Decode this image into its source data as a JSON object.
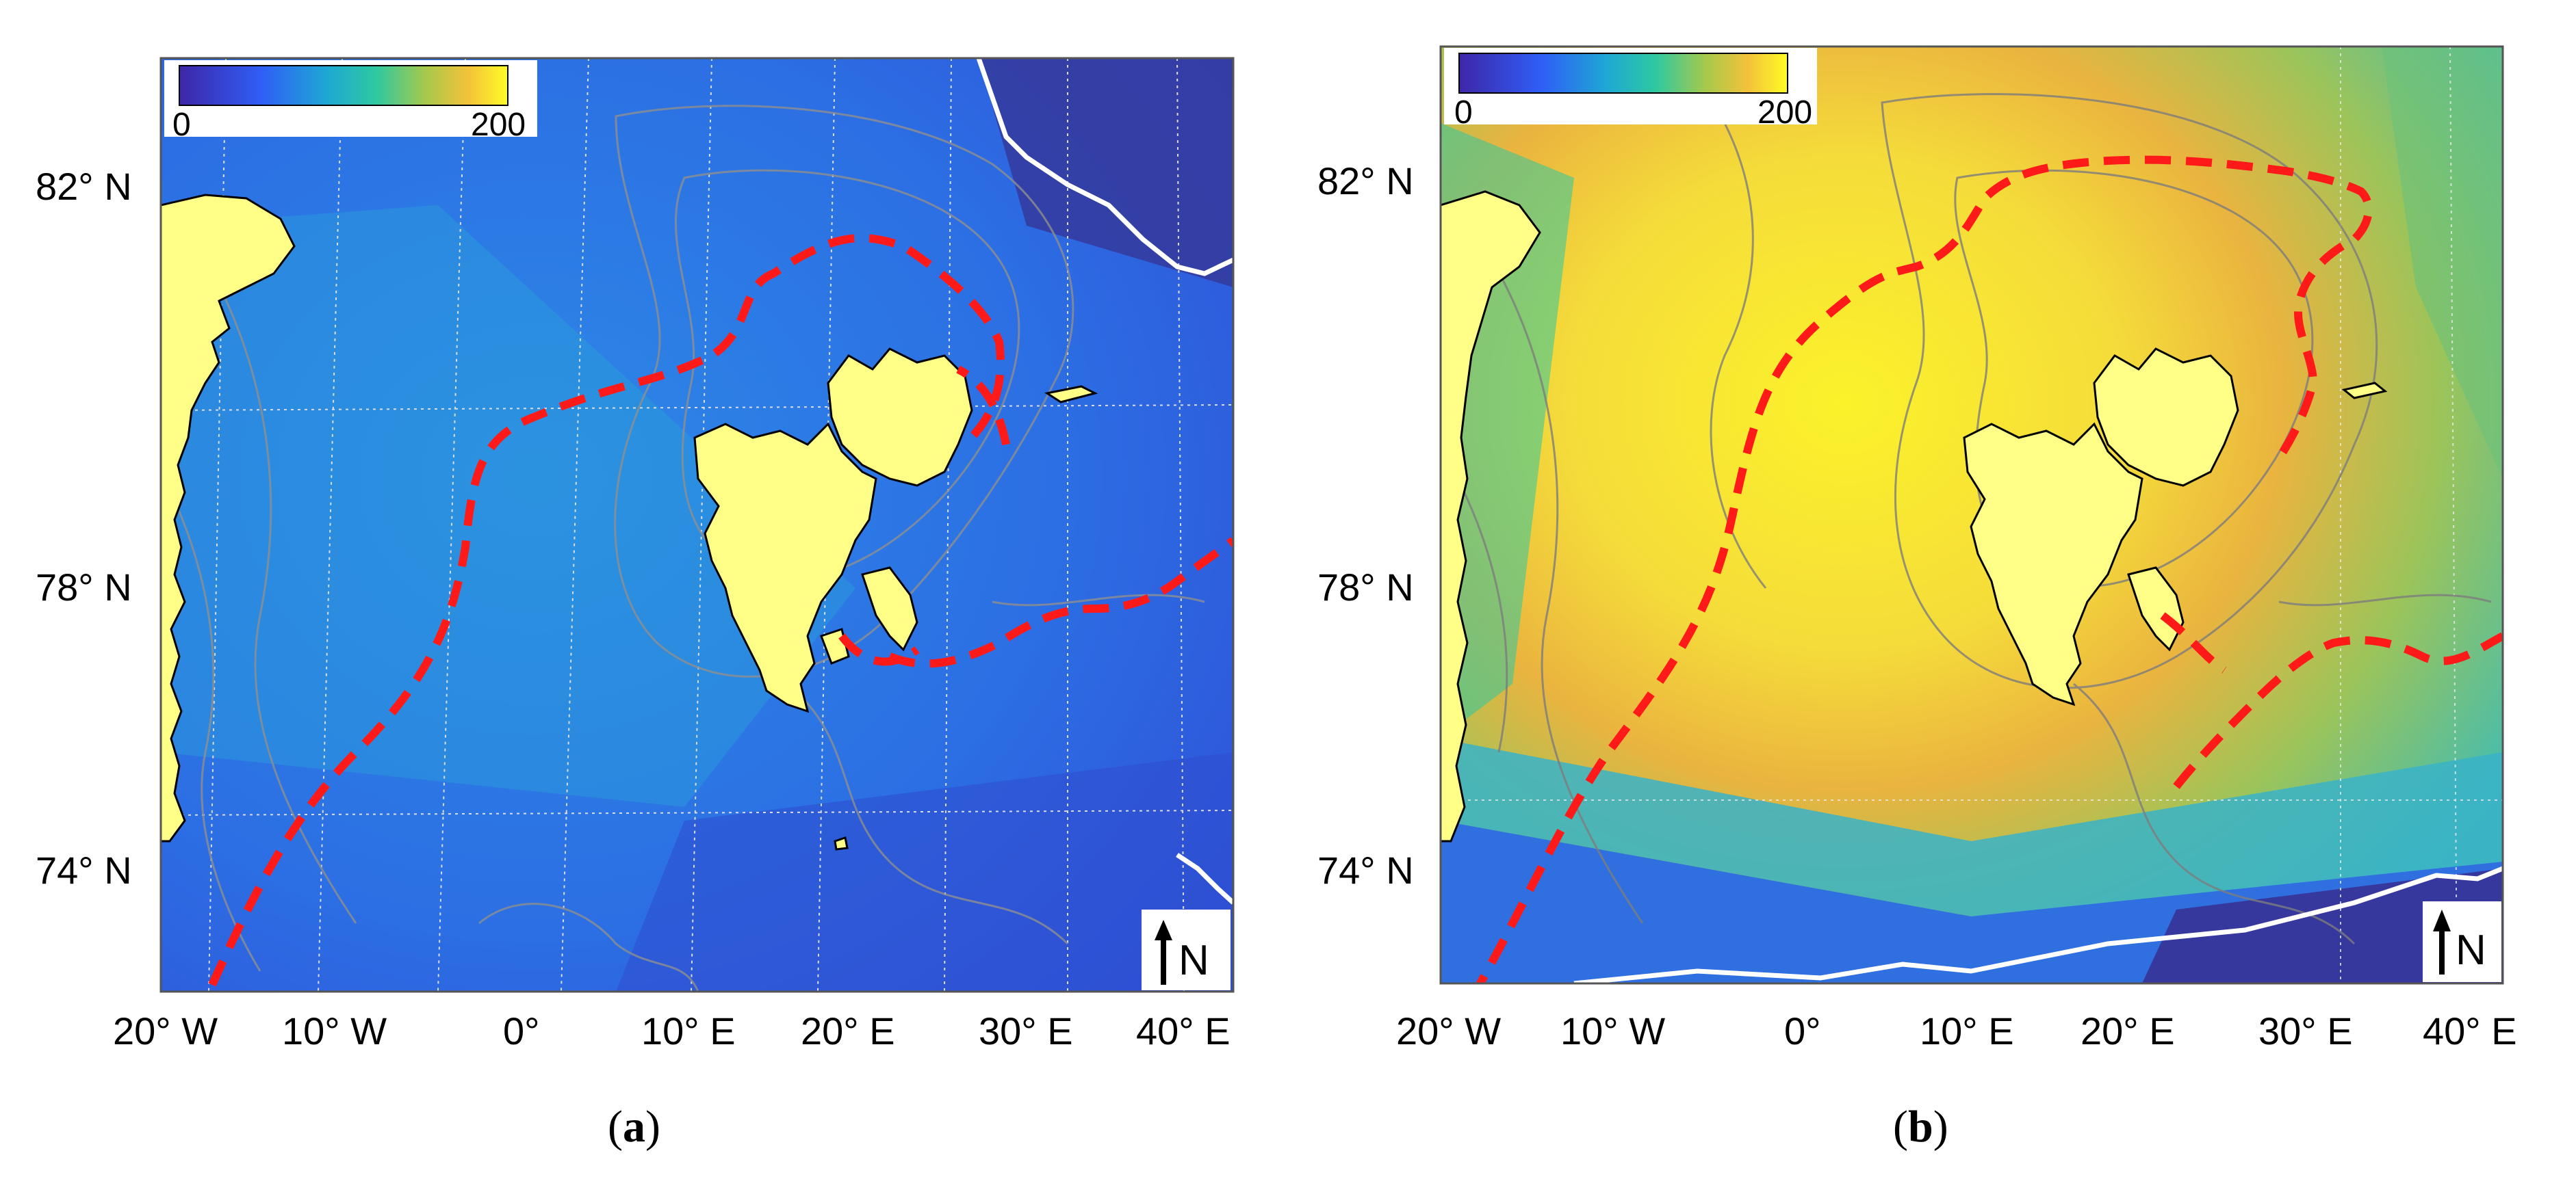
{
  "colors": {
    "land": "#ffff88",
    "land_outline": "#000000",
    "contour": "#8f8f8f",
    "ice_edge": "#ff1a1a",
    "ice_boundary": "#ffffff",
    "grid": "#dcdcdc",
    "frame": "#555555",
    "colormap": [
      "#3e26a8",
      "#2f5ef7",
      "#1ea8d4",
      "#2ec9a0",
      "#a6c94b",
      "#f4c23a",
      "#fefb25"
    ]
  },
  "panels": [
    {
      "caption": "a",
      "colorbar": {
        "min": "0",
        "max": "200"
      },
      "lat_labels": [
        "82° N",
        "78° N",
        "74° N"
      ],
      "lon_labels": [
        "20° W",
        "10° W",
        "0°",
        "10° E",
        "20° E",
        "30° E",
        "40° E"
      ],
      "north_arrow_label": "N",
      "field_level": 0.2
    },
    {
      "caption": "b",
      "colorbar": {
        "min": "0",
        "max": "200"
      },
      "lat_labels": [
        "82° N",
        "78° N",
        "74° N"
      ],
      "lon_labels": [
        "20° W",
        "10° W",
        "0°",
        "10° E",
        "20° E",
        "30° E",
        "40° E"
      ],
      "north_arrow_label": "N",
      "field_level": 0.9
    }
  ]
}
